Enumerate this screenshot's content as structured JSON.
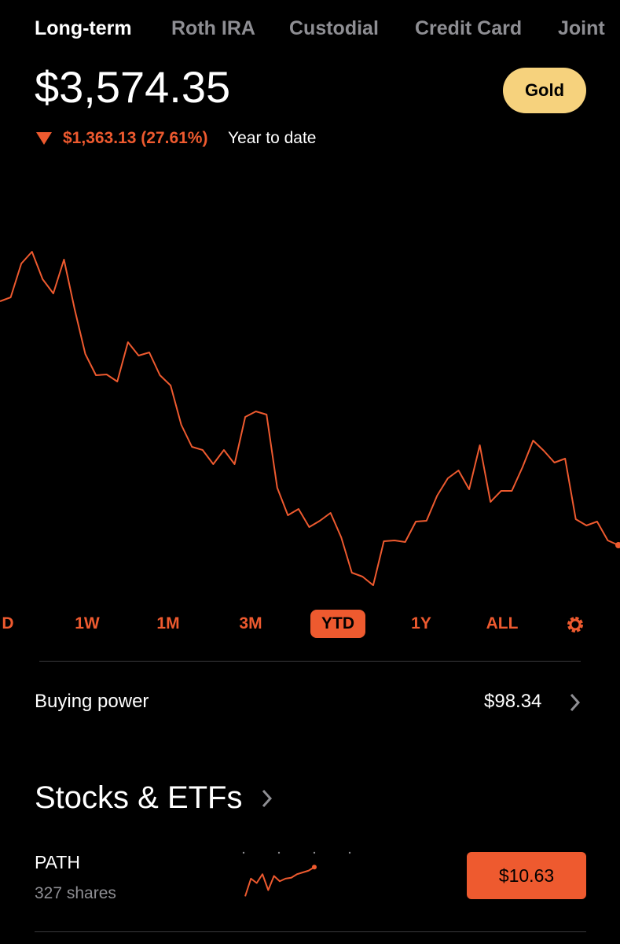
{
  "tabs": [
    "Long-term",
    "Roth IRA",
    "Custodial",
    "Credit Card",
    "Joint"
  ],
  "header": {
    "balance": "$3,574.35",
    "badge": "Gold",
    "change": "$1,363.13 (27.61%)",
    "period": "Year to date"
  },
  "chart_data": {
    "type": "line",
    "color": "#ee5a2f",
    "values": [
      377,
      382,
      425,
      440,
      405,
      387,
      430,
      367,
      310,
      283,
      284,
      275,
      325,
      308,
      312,
      283,
      270,
      220,
      192,
      188,
      170,
      188,
      170,
      230,
      237,
      233,
      140,
      105,
      113,
      90,
      98,
      108,
      77,
      32,
      27,
      16,
      72,
      73,
      71,
      97,
      98,
      130,
      152,
      162,
      138,
      194,
      122,
      136,
      136,
      166,
      200,
      187,
      172,
      177,
      100,
      92,
      97,
      73,
      67
    ],
    "ylim": [
      0,
      460
    ]
  },
  "ranges": [
    "D",
    "1W",
    "1M",
    "3M",
    "YTD",
    "1Y",
    "ALL"
  ],
  "selected_range": 4,
  "buying_power": {
    "label": "Buying power",
    "value": "$98.34"
  },
  "section": {
    "title": "Stocks & ETFs"
  },
  "holdings": [
    {
      "symbol": "PATH",
      "shares": "327 shares",
      "price": "$10.63",
      "sparkline": {
        "type": "line",
        "color": "#ee5a2f",
        "values": [
          5,
          25,
          20,
          30,
          12,
          28,
          22,
          25,
          26,
          30,
          32,
          34,
          38
        ],
        "ylim": [
          0,
          40
        ]
      }
    }
  ]
}
